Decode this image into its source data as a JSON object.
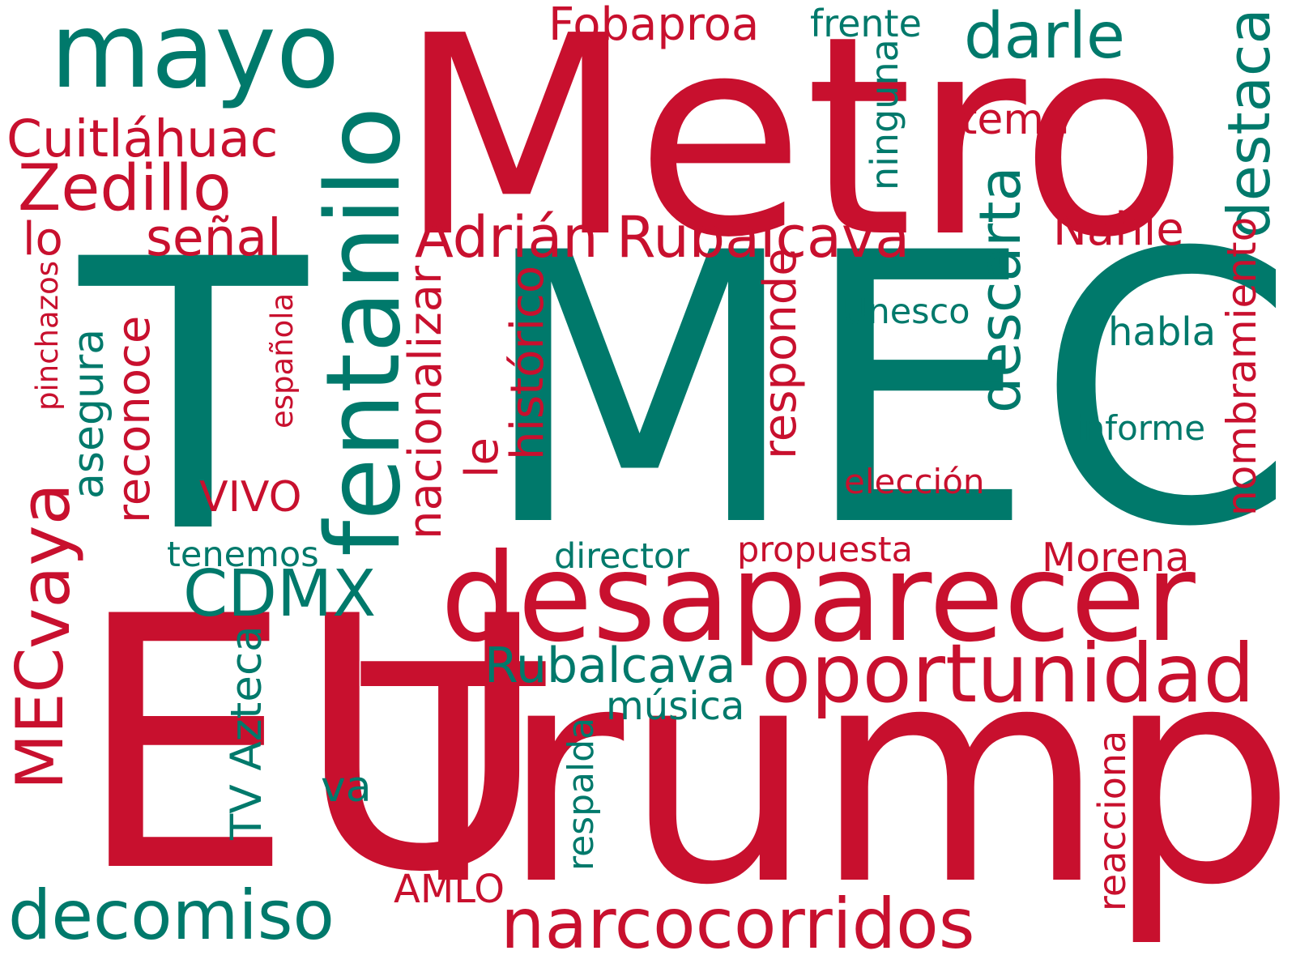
{
  "colors": {
    "red": "#c8102e",
    "green": "#00796b",
    "background": "#ffffff"
  },
  "words": [
    {
      "id": "metro",
      "text": "Metro",
      "color": "red"
    },
    {
      "id": "mayo",
      "text": "mayo",
      "color": "green"
    },
    {
      "id": "fobaproa",
      "text": "Fobaproa",
      "color": "red"
    },
    {
      "id": "frente",
      "text": "frente",
      "color": "green"
    },
    {
      "id": "darle",
      "text": "darle",
      "color": "green"
    },
    {
      "id": "destaca",
      "text": "destaca",
      "color": "green"
    },
    {
      "id": "ninguna",
      "text": "ninguna",
      "color": "green"
    },
    {
      "id": "tema",
      "text": "tema",
      "color": "red"
    },
    {
      "id": "cuitlahuac",
      "text": "Cuitláhuac",
      "color": "red"
    },
    {
      "id": "zedillo",
      "text": "Zedillo",
      "color": "red"
    },
    {
      "id": "fentanilo",
      "text": "fentanilo",
      "color": "green"
    },
    {
      "id": "lo",
      "text": "lo",
      "color": "red"
    },
    {
      "id": "senal",
      "text": "señal",
      "color": "red"
    },
    {
      "id": "adrian-rubalcava",
      "text": "Adrián Rubalcava",
      "color": "red"
    },
    {
      "id": "descarta",
      "text": "descarta",
      "color": "green"
    },
    {
      "id": "nahle",
      "text": "Nahle",
      "color": "red"
    },
    {
      "id": "nombramiento",
      "text": "nombramiento",
      "color": "red"
    },
    {
      "id": "t",
      "text": "T",
      "color": "green"
    },
    {
      "id": "mec-big",
      "text": "MEC",
      "color": "green"
    },
    {
      "id": "pinchazos",
      "text": "pinchazos",
      "color": "red"
    },
    {
      "id": "asegura",
      "text": "asegura",
      "color": "green"
    },
    {
      "id": "reconoce",
      "text": "reconoce",
      "color": "red"
    },
    {
      "id": "espanola",
      "text": "española",
      "color": "red"
    },
    {
      "id": "nacionalizar",
      "text": "nacionalizar",
      "color": "red"
    },
    {
      "id": "le",
      "text": "le",
      "color": "red"
    },
    {
      "id": "historico",
      "text": "histórico",
      "color": "red"
    },
    {
      "id": "responde",
      "text": "responde",
      "color": "red"
    },
    {
      "id": "unesco",
      "text": "Unesco",
      "color": "green"
    },
    {
      "id": "habla",
      "text": "habla",
      "color": "green"
    },
    {
      "id": "informe",
      "text": "informe",
      "color": "green"
    },
    {
      "id": "eleccion",
      "text": "elección",
      "color": "red"
    },
    {
      "id": "vaya",
      "text": "vaya",
      "color": "red"
    },
    {
      "id": "vivo",
      "text": "VIVO",
      "color": "red"
    },
    {
      "id": "tenemos",
      "text": "tenemos",
      "color": "green"
    },
    {
      "id": "director",
      "text": "director",
      "color": "green"
    },
    {
      "id": "propuesta",
      "text": "propuesta",
      "color": "red"
    },
    {
      "id": "morena",
      "text": "Morena",
      "color": "red"
    },
    {
      "id": "cdmx",
      "text": "CDMX",
      "color": "green"
    },
    {
      "id": "desaparecer",
      "text": "desaparecer",
      "color": "red"
    },
    {
      "id": "mec-small",
      "text": "MEC",
      "color": "red"
    },
    {
      "id": "eu",
      "text": "EU",
      "color": "red"
    },
    {
      "id": "tv-azteca",
      "text": "TV Azteca",
      "color": "green"
    },
    {
      "id": "rubalcava",
      "text": "Rubalcava",
      "color": "green"
    },
    {
      "id": "oportunidad",
      "text": "oportunidad",
      "color": "red"
    },
    {
      "id": "musica",
      "text": "música",
      "color": "green"
    },
    {
      "id": "trump",
      "text": "Trump",
      "color": "red"
    },
    {
      "id": "va",
      "text": "va",
      "color": "green"
    },
    {
      "id": "respalda",
      "text": "respalda",
      "color": "green"
    },
    {
      "id": "reacciona",
      "text": "reacciona",
      "color": "red"
    },
    {
      "id": "amlo",
      "text": "AMLO",
      "color": "red"
    },
    {
      "id": "decomiso",
      "text": "decomiso",
      "color": "green"
    },
    {
      "id": "narcocorridos",
      "text": "narcocorridos",
      "color": "red"
    }
  ]
}
